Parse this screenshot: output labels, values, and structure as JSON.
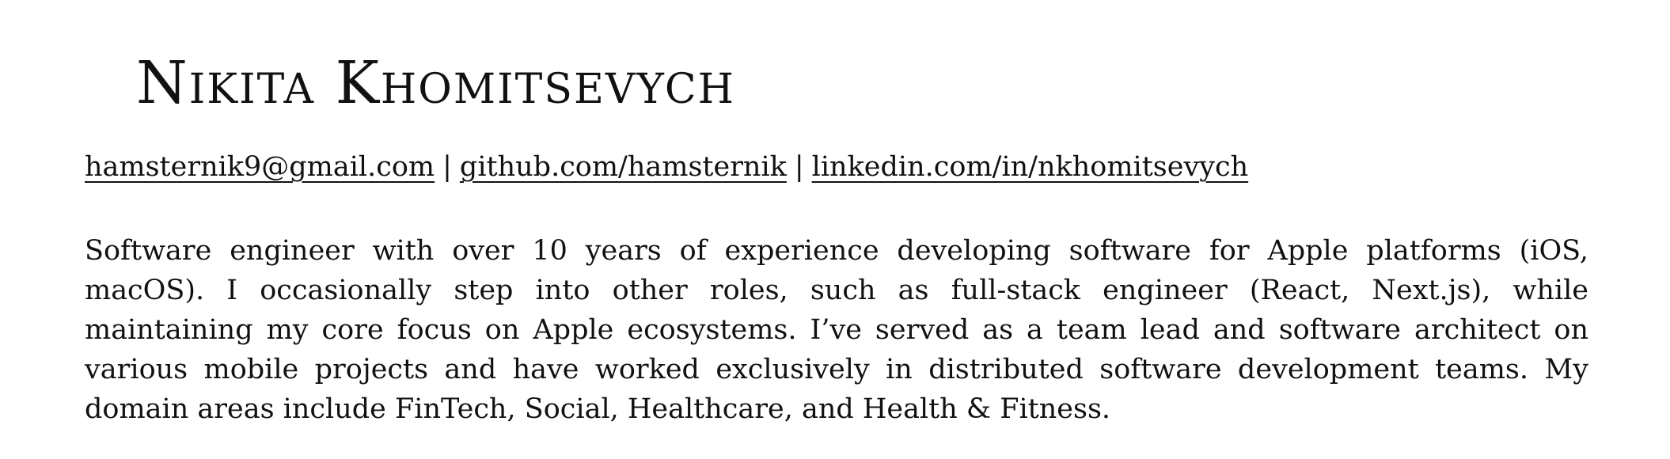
{
  "header": {
    "name": "Nikita Khomitsevych"
  },
  "contacts": {
    "email": "hamsternik9@gmail.com",
    "github": "github.com/hamsternik",
    "linkedin": "linkedin.com/in/nkhomitsevych",
    "separator": "|"
  },
  "summary": {
    "text": "Software engineer with over 10 years of experience developing software for Apple platforms (iOS, macOS). I occasionally step into other roles, such as full-stack engineer (React, Next.js), while maintaining my core focus on Apple ecosystems.  I’ve served as a team lead and software architect on various mobile projects and have worked exclusively in distributed software development teams.  My domain areas include FinTech, Social, Healthcare, and Health & Fitness."
  }
}
